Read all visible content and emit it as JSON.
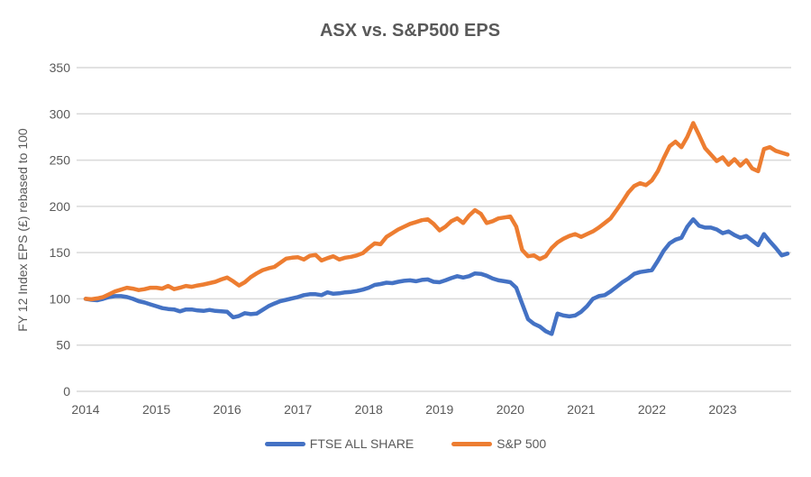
{
  "title": "ASX vs. S&P500 EPS",
  "y_axis": {
    "label": "FY 12 Index EPS (£) rebased to 100",
    "ticks": [
      0,
      50,
      100,
      150,
      200,
      250,
      300,
      350
    ],
    "min": 0,
    "max": 350
  },
  "x_axis": {
    "categories": [
      "2014",
      "2015",
      "2016",
      "2017",
      "2018",
      "2019",
      "2020",
      "2021",
      "2022",
      "2023"
    ]
  },
  "colors": {
    "ftse": "#4472C4",
    "sp500": "#ED7D31",
    "text": "#595959",
    "gridline": "#D9D9D9"
  },
  "chart_data": {
    "type": "line",
    "title": "ASX vs. S&P500 EPS",
    "xlabel": "",
    "ylabel": "FY 12 Index EPS (£) rebased to 100",
    "ylim": [
      0,
      350
    ],
    "x_range": [
      "2014-01",
      "2023-12"
    ],
    "x_frequency": "monthly",
    "grid": true,
    "legend_position": "bottom",
    "categories_years": [
      "2014",
      "2015",
      "2016",
      "2017",
      "2018",
      "2019",
      "2020",
      "2021",
      "2022",
      "2023"
    ],
    "series": [
      {
        "name": "FTSE ALL SHARE",
        "color": "#4472C4",
        "values": [
          100,
          99,
          98.5,
          100,
          102,
          103,
          103,
          102,
          100,
          97.5,
          96,
          94,
          92,
          90,
          89,
          88.5,
          86.5,
          88.5,
          88.5,
          87.5,
          87,
          88,
          87,
          86.5,
          86,
          80,
          81.5,
          84.5,
          83.5,
          84,
          88,
          92,
          95,
          97.5,
          99,
          100.5,
          102,
          104,
          105,
          105,
          104,
          107,
          105.5,
          106,
          107,
          107.5,
          108.5,
          110,
          112,
          115,
          116,
          117.5,
          117,
          118.5,
          119.5,
          120,
          119,
          120.5,
          121,
          118.5,
          118,
          120,
          122.5,
          124.5,
          123,
          124.5,
          127.5,
          127,
          125,
          122,
          120,
          119,
          118,
          112,
          95,
          78,
          73,
          70,
          65,
          62,
          84,
          82,
          81,
          82,
          86,
          92,
          100,
          103,
          104,
          108,
          113,
          118,
          122,
          127,
          129,
          130,
          131,
          141,
          152,
          160,
          164,
          166,
          178,
          186,
          179,
          177,
          177,
          175,
          171,
          173,
          169,
          166,
          168,
          163,
          158,
          170,
          162,
          155,
          147,
          149
        ]
      },
      {
        "name": "S&P 500",
        "color": "#ED7D31",
        "values": [
          100,
          99.5,
          100.5,
          102,
          105,
          108,
          110,
          112,
          111,
          109.5,
          110.5,
          112,
          112,
          111,
          114,
          110.5,
          112,
          114,
          113,
          114.5,
          115.5,
          117,
          118.5,
          121,
          123,
          119,
          114.5,
          118,
          123.5,
          127.5,
          131,
          133,
          134.5,
          139,
          143.5,
          144.5,
          145,
          142.5,
          146.5,
          147.5,
          141.5,
          144,
          146,
          142.5,
          144.5,
          145.5,
          147,
          149.5,
          155,
          160,
          159,
          167,
          171,
          175,
          178,
          181,
          183,
          185,
          186,
          181,
          174,
          178,
          184,
          187,
          182,
          190,
          196,
          192,
          182,
          184,
          187,
          188,
          189,
          178,
          153,
          146,
          147,
          143,
          146,
          155,
          161,
          165,
          168,
          170,
          167,
          170,
          173,
          177,
          182,
          187,
          196,
          205,
          215,
          222,
          225,
          223,
          228,
          238,
          252,
          265,
          270,
          264,
          275,
          290,
          277,
          263,
          256,
          249,
          253,
          245,
          251,
          244,
          250,
          241,
          238,
          262,
          264,
          260,
          258,
          256
        ]
      }
    ]
  },
  "legend": {
    "items": [
      {
        "label": "FTSE ALL SHARE",
        "color": "#4472C4"
      },
      {
        "label": "S&P 500",
        "color": "#ED7D31"
      }
    ]
  }
}
